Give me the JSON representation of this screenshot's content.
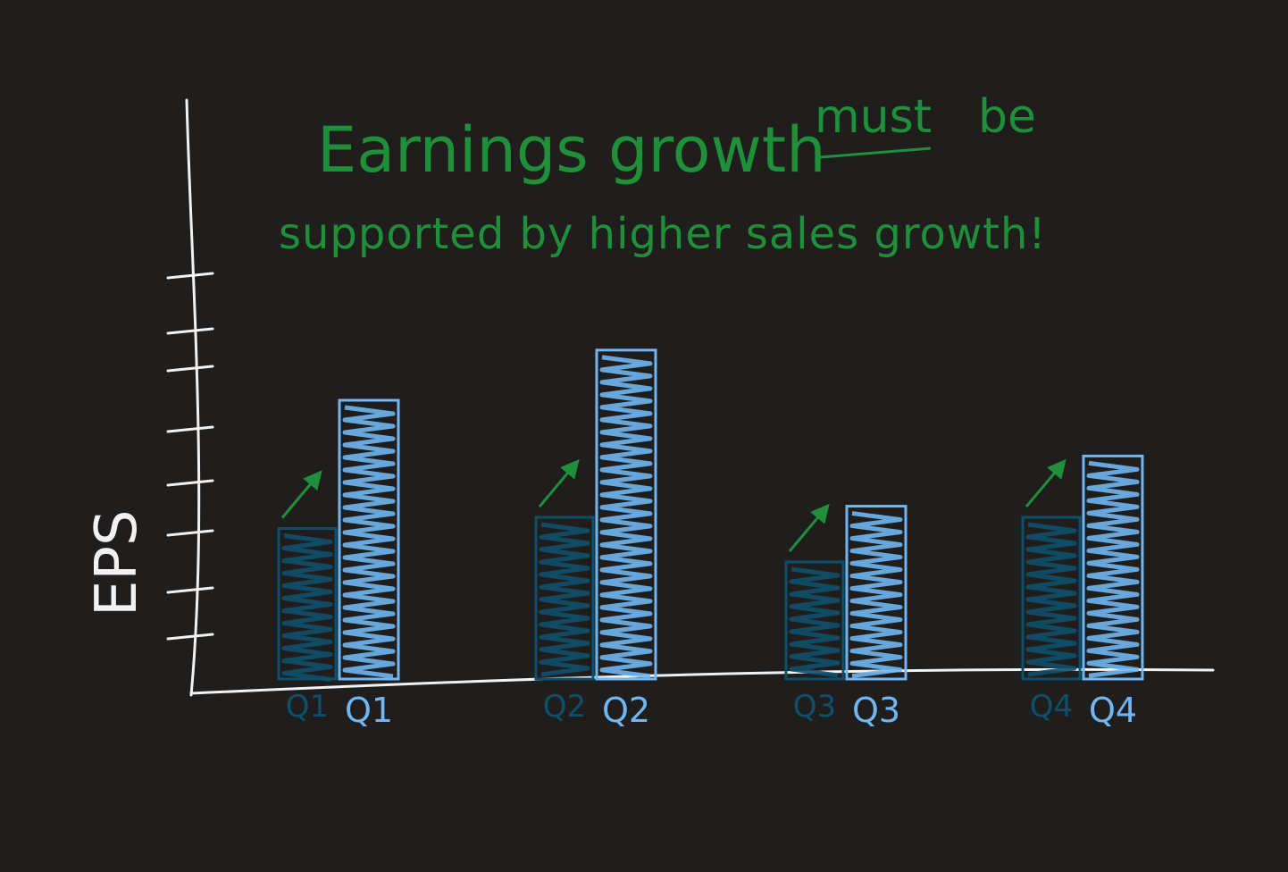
{
  "chart_data": {
    "type": "bar",
    "title_line1_part1": "Earnings growth",
    "title_line1_emphasis": "must",
    "title_line1_part2": "be",
    "title_line2": "supported by higher sales growth!",
    "ylabel": "EPS",
    "xlabel": "",
    "categories": [
      "Q1",
      "Q2",
      "Q3",
      "Q4"
    ],
    "ylim": [
      0,
      8
    ],
    "grid": false,
    "legend": "none",
    "series": [
      {
        "values": [
          2.7,
          2.9,
          2.1,
          2.9
        ]
      },
      {
        "values": [
          5.0,
          5.9,
          3.1,
          4.0
        ]
      }
    ],
    "colors": {
      "background": "#1f1e1d",
      "axis": "#f2f2f2",
      "title": "#1f8f3a",
      "series_dark": "#0e4f6b",
      "series_light": "#6fb6f2",
      "arrow": "#1f8f3a"
    }
  }
}
